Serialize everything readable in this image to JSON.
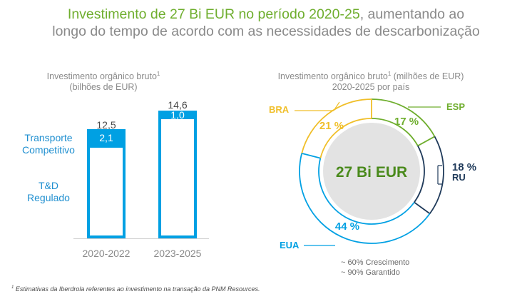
{
  "title": {
    "highlight": "Investimento de 27 Bi EUR no período 2020-25",
    "rest_line1": ", aumentando ao",
    "line2": "longo do tempo de acordo com as necessidades de descarbonização"
  },
  "colors": {
    "blue": "#00a0e3",
    "green": "#6fae2e",
    "yellow": "#f0bf2a",
    "navy": "#1f3a5a",
    "gray": "#8a8a8a"
  },
  "chart_data": [
    {
      "type": "bar",
      "subtitle_line1": "Investimento orgânico bruto",
      "subtitle_sup": "1",
      "subtitle_line2": "(bilhões de EUR)",
      "categories": [
        "2020-2022",
        "2023-2025"
      ],
      "totals": [
        "12,5",
        "14,6"
      ],
      "series": [
        {
          "name": "T&D Regulado",
          "values": [
            10.4,
            13.6
          ]
        },
        {
          "name": "Transporte Competitivo",
          "values": [
            2.1,
            1.0
          ],
          "labels": [
            "2,1",
            "1,0"
          ]
        }
      ],
      "legend": {
        "top_line1": "Transporte",
        "top_line2": "Competitivo",
        "bottom_line1": "T&D",
        "bottom_line2": "Regulado"
      }
    },
    {
      "type": "pie",
      "subtitle_line1_a": "Investimento orgânico bruto",
      "subtitle_sup": "1",
      "subtitle_line1_b": " (milhões de EUR)",
      "subtitle_line2": "2020-2025 por país",
      "center_label": "27 Bi EUR",
      "slices": [
        {
          "name": "ESP",
          "value": 17,
          "label": "17 %",
          "color": "#6fae2e"
        },
        {
          "name": "RU",
          "value": 18,
          "label": "18 %",
          "color": "#1f3a5a"
        },
        {
          "name": "EUA",
          "value": 44,
          "label": "44 %",
          "color": "#00a0e3"
        },
        {
          "name": "BRA",
          "value": 21,
          "label": "21 %",
          "color": "#f0bf2a"
        }
      ],
      "notes": [
        "~ 60% Crescimento",
        "~ 90% Garantido"
      ]
    }
  ],
  "footnote": {
    "sup": "1",
    "text": " Estimativas da Iberdrola referentes ao investimento na transação da PNM Resources."
  }
}
